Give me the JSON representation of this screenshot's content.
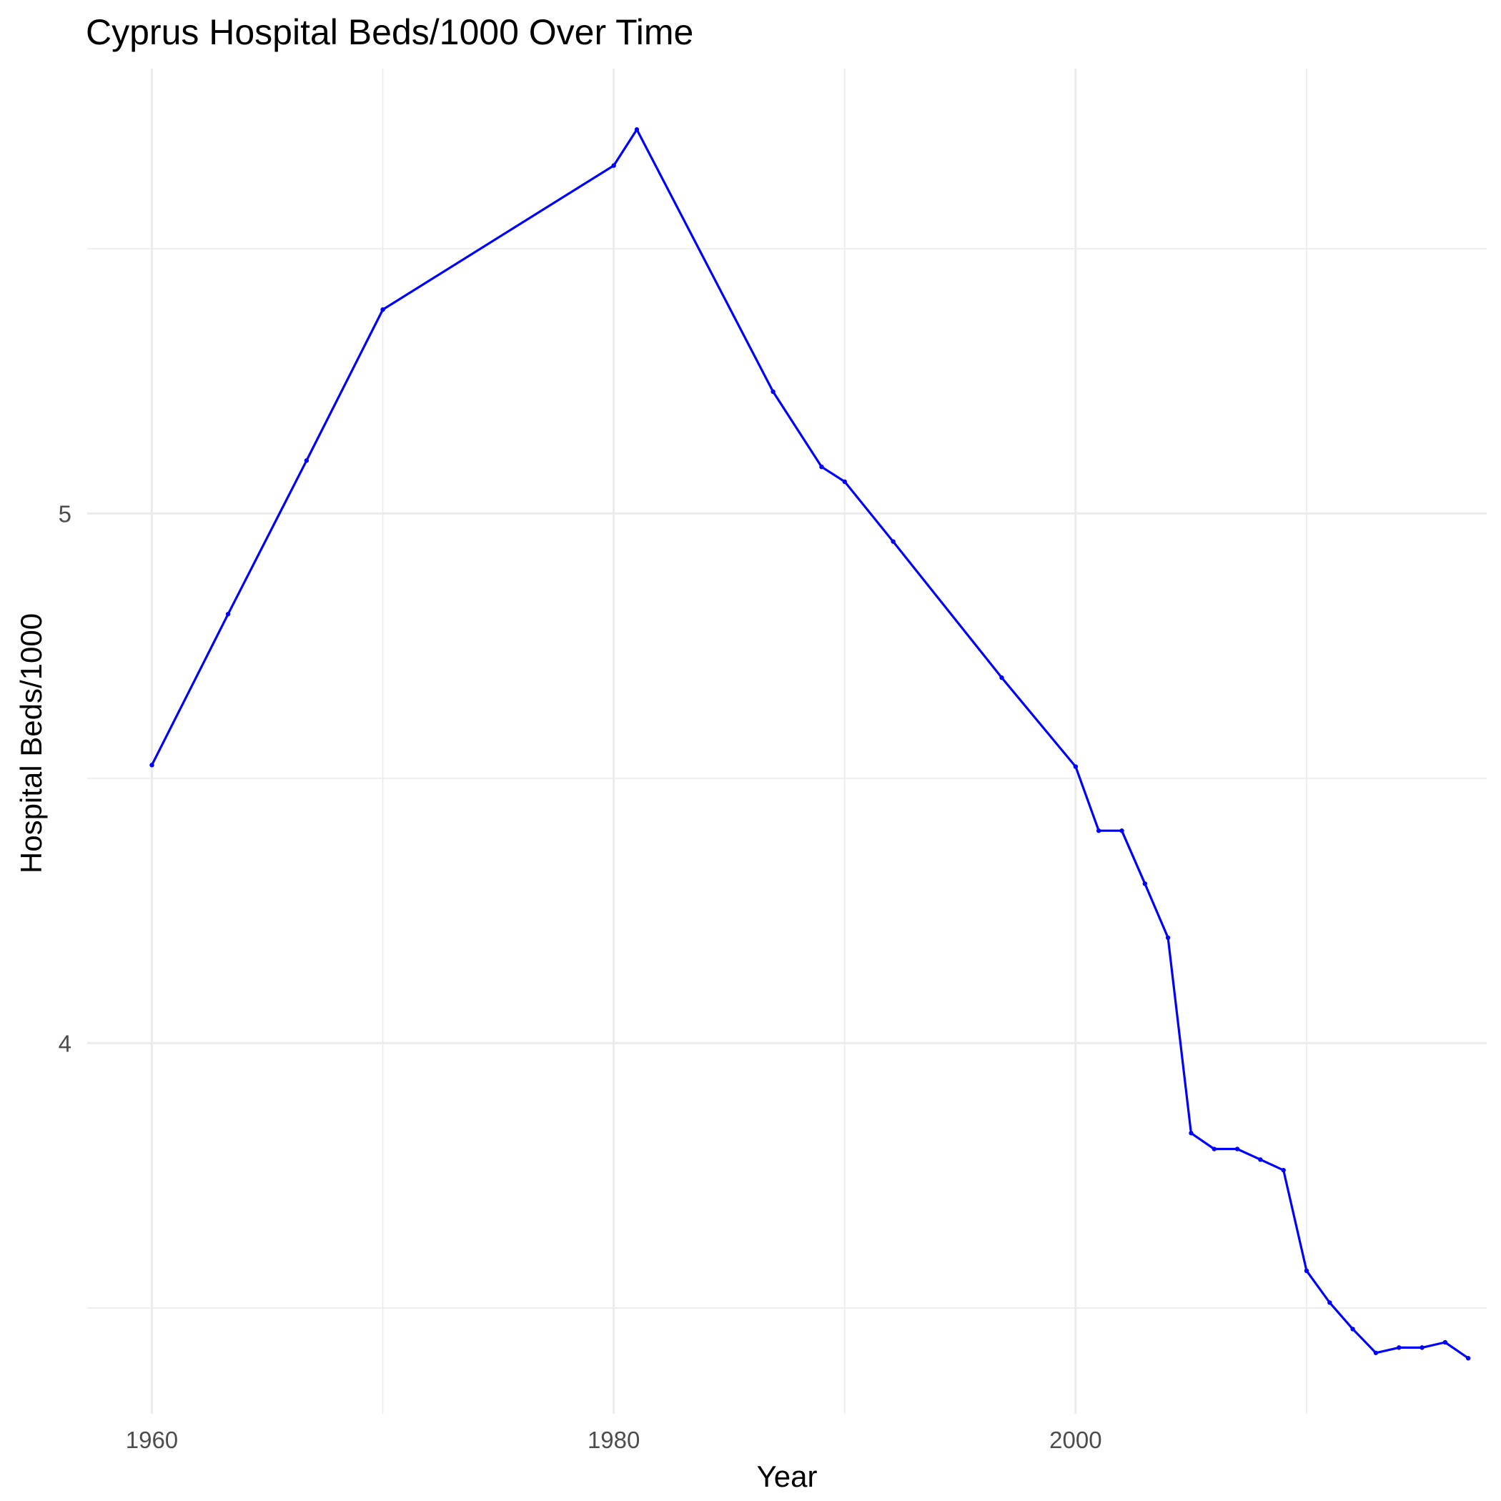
{
  "chart_data": {
    "type": "line",
    "title": "Cyprus Hospital Beds/1000 Over Time",
    "xlabel": "Year",
    "ylabel": "Hospital Beds/1000",
    "xlim": [
      1957.2,
      2017.8
    ],
    "ylim": [
      3.3,
      5.84
    ],
    "x_ticks": [
      1960,
      1980,
      2000
    ],
    "x_minor_ticks": [
      1970,
      1990,
      2010
    ],
    "y_ticks": [
      4,
      5
    ],
    "y_minor_ticks": [
      3.5,
      4.5,
      5.5
    ],
    "grid": true,
    "legend": "none",
    "line_color": "#0000ff",
    "series": [
      {
        "x": [
          1960,
          1963.3,
          1966.7,
          1970,
          1980,
          1981,
          1986.9,
          1989,
          1990,
          1992.1,
          1996.8,
          2000,
          2001,
          2002,
          2003,
          2004,
          2005,
          2006,
          2007,
          2008,
          2009,
          2010,
          2011,
          2012,
          2013,
          2014,
          2015,
          2016,
          2017
        ],
        "y": [
          4.525,
          4.81,
          5.1,
          5.385,
          5.657,
          5.725,
          5.23,
          5.088,
          5.06,
          4.947,
          4.69,
          4.522,
          4.401,
          4.401,
          4.301,
          4.199,
          3.83,
          3.8,
          3.8,
          3.78,
          3.76,
          3.57,
          3.51,
          3.46,
          3.415,
          3.425,
          3.425,
          3.435,
          3.405
        ]
      }
    ]
  }
}
